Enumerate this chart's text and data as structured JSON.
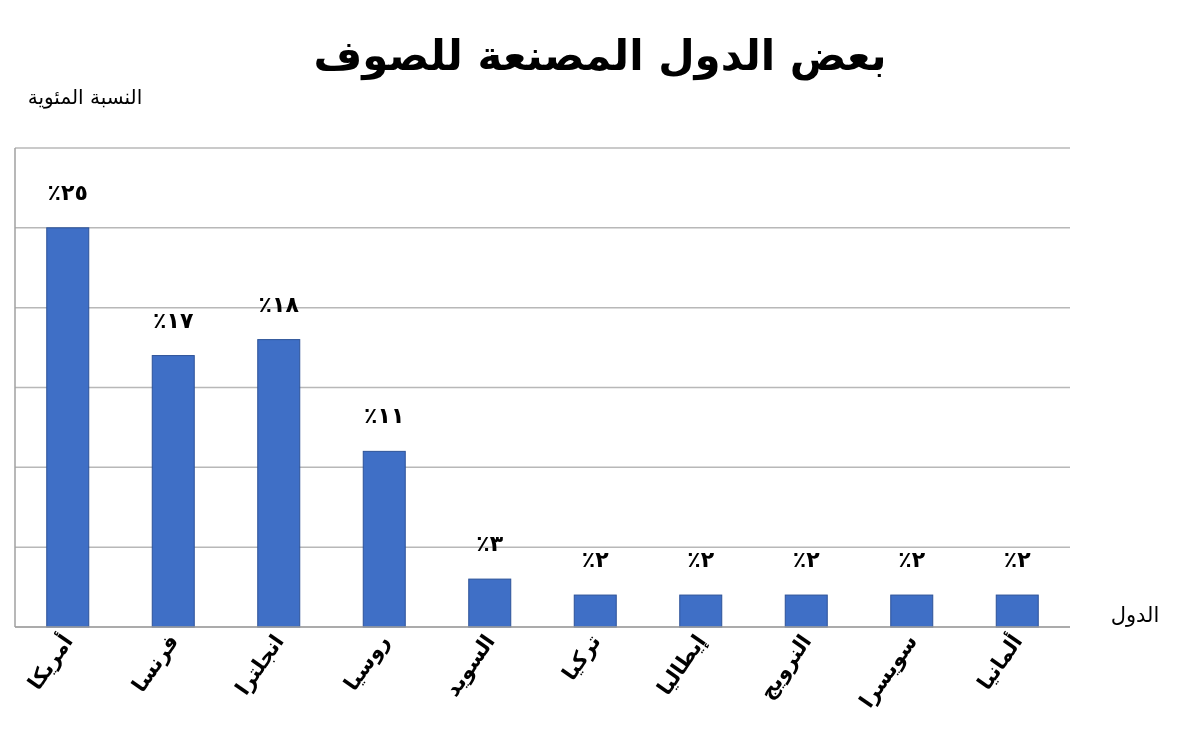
{
  "chart_data": {
    "type": "bar",
    "title": "بعض الدول المصنعة للصوف",
    "ylabel": "النسبة المئوية",
    "xlabel": "الدول",
    "categories": [
      "أمريكا",
      "فرنسا",
      "انجلترا",
      "روسيا",
      "السويد",
      "تركيا",
      "إيطاليا",
      "النرويج",
      "سويسرا",
      "ألمانيا"
    ],
    "values": [
      25,
      17,
      18,
      11,
      3,
      2,
      2,
      2,
      2,
      2
    ],
    "value_labels": [
      "٢٥٪",
      "١٧٪",
      "١٨٪",
      "١١٪",
      "٣٪",
      "٢٪",
      "٢٪",
      "٢٪",
      "٢٪",
      "٢٪"
    ],
    "color": "#3f6fc6",
    "ylim": [
      0,
      30
    ],
    "yticks": [
      {
        "value": 0,
        "label": null
      },
      {
        "value": 5,
        "label": null
      },
      {
        "value": 10,
        "label": null
      },
      {
        "value": 15,
        "label": null
      },
      {
        "value": 20,
        "label": null
      },
      {
        "value": 25,
        "label": null
      },
      {
        "value": 30,
        "label": null
      }
    ],
    "grid": "y"
  }
}
